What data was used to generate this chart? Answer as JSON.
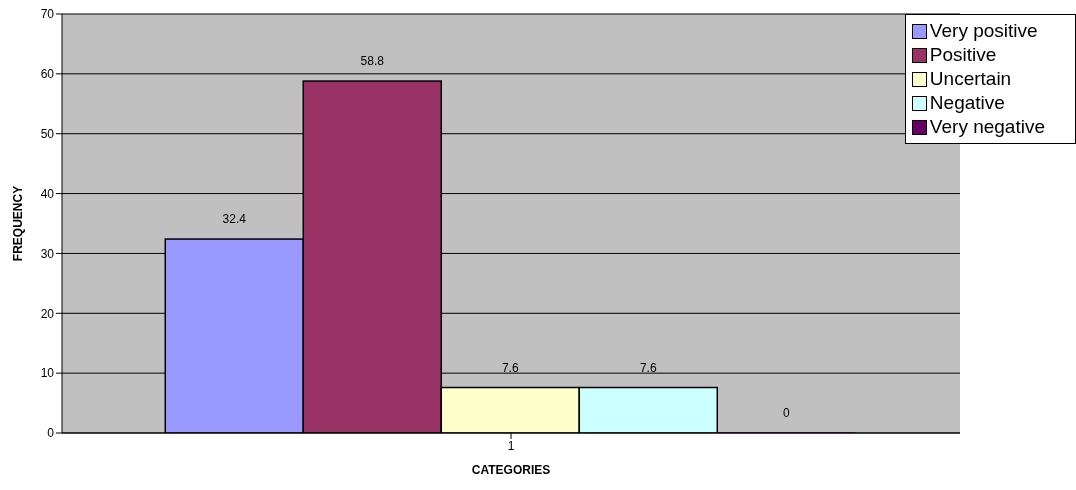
{
  "chart_data": {
    "type": "bar",
    "categories": [
      "1"
    ],
    "xlabel": "CATEGORIES",
    "ylabel": "FREQUENCY",
    "series": [
      {
        "name": "Very positive",
        "color": "#9999ff",
        "values": [
          32.4
        ]
      },
      {
        "name": "Positive",
        "color": "#993366",
        "values": [
          58.8
        ]
      },
      {
        "name": "Uncertain",
        "color": "#ffffcc",
        "values": [
          7.6
        ]
      },
      {
        "name": "Negative",
        "color": "#ccffff",
        "values": [
          7.6
        ]
      },
      {
        "name": "Very negative",
        "color": "#660066",
        "values": [
          0
        ]
      }
    ],
    "ylim": [
      0,
      70
    ],
    "yticks": [
      0,
      10,
      20,
      30,
      40,
      50,
      60,
      70
    ],
    "grid": "y",
    "legend": "top right",
    "data_labels": true
  }
}
